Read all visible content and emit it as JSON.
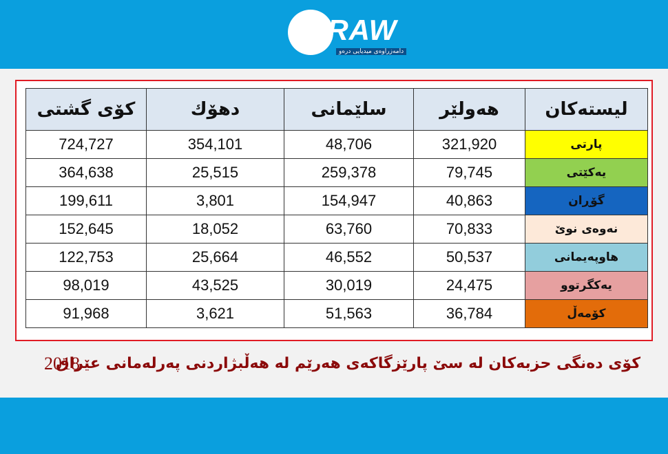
{
  "logo": {
    "text": "DRAW",
    "tagline": "دامەزراوەی میدیایی درەو"
  },
  "table": {
    "header": [
      "لیستەکان",
      "هەولێر",
      "سلێمانی",
      "دهۆك",
      "کۆی گشتی"
    ],
    "rows": [
      [
        "پارتی",
        "321,920",
        "48,706",
        "354,101",
        "724,727"
      ],
      [
        "یەکێتی",
        "79,745",
        "259,378",
        "25,515",
        "364,638"
      ],
      [
        "گۆڕان",
        "40,863",
        "154,947",
        "3,801",
        "199,611"
      ],
      [
        "نەوەی نوێ",
        "70,833",
        "63,760",
        "18,052",
        "152,645"
      ],
      [
        "هاوپەیمانی",
        "50,537",
        "46,552",
        "25,664",
        "122,753"
      ],
      [
        "یەکگرتوو",
        "24,475",
        "30,019",
        "43,525",
        "98,019"
      ],
      [
        "کۆمەڵ",
        "36,784",
        "51,563",
        "3,621",
        "91,968"
      ]
    ]
  },
  "caption": {
    "title": "کۆی دەنگی حزبەکان لە سێ پارێزگاکەی هەرێم لە هەڵبژاردنی پەرلەمانی عێراق",
    "year": "2018"
  }
}
